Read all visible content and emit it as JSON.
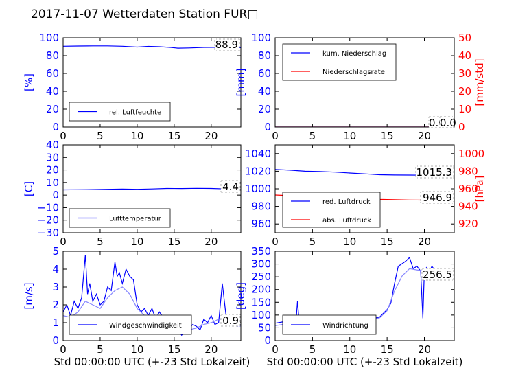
{
  "page": {
    "title": "2017-11-07 Wetterdaten Station FUR□"
  },
  "colors": {
    "left": "#0000ff",
    "right": "#ff0000",
    "light": "#8888ff"
  },
  "chart_data": [
    {
      "type": "line",
      "ylabel": "[%]",
      "xlabel": "",
      "xlim": [
        0,
        24
      ],
      "ylim": [
        0,
        100
      ],
      "xticks": [
        "0",
        "5",
        "10",
        "15",
        "20"
      ],
      "yticks": [
        "0",
        "20",
        "40",
        "60",
        "80",
        "100"
      ],
      "legend": "bottom-left",
      "last_value_label": "88.9",
      "series": [
        {
          "name": "rel. Luftfeuchte",
          "color": "#0000ff",
          "axis": "left",
          "x": [
            0,
            2,
            4,
            6,
            8,
            10,
            11.5,
            13,
            14.5,
            15.5,
            17,
            19,
            21,
            24
          ],
          "y": [
            90.5,
            90.8,
            90.9,
            90.9,
            90.5,
            89.6,
            90.4,
            90.0,
            89.2,
            88.4,
            88.6,
            89.2,
            89.3,
            88.9
          ]
        }
      ]
    },
    {
      "type": "line",
      "ylabel": "[mm]",
      "y2label": "[mm/std]",
      "xlabel": "",
      "xlim": [
        0,
        24
      ],
      "ylim": [
        0,
        100
      ],
      "y2lim": [
        0,
        50
      ],
      "xticks": [
        "0",
        "5",
        "10",
        "15",
        "20"
      ],
      "yticks": [
        "0",
        "20",
        "40",
        "60",
        "80",
        "100"
      ],
      "y2ticks": [
        "0",
        "10",
        "20",
        "30",
        "40",
        "50"
      ],
      "legend": "top-left",
      "last_value_label": "0.00",
      "second_value_label": "0.0",
      "series": [
        {
          "name": "kum. Niederschlag",
          "color": "#0000ff",
          "axis": "left",
          "x": [
            0,
            24
          ],
          "y": [
            0,
            0
          ]
        },
        {
          "name": "Niederschlagsrate",
          "color": "#ff0000",
          "axis": "right",
          "x": [
            0,
            24
          ],
          "y": [
            0,
            0
          ]
        }
      ]
    },
    {
      "type": "line",
      "ylabel": "[C]",
      "xlabel": "",
      "xlim": [
        0,
        24
      ],
      "ylim": [
        -30,
        40
      ],
      "xticks": [
        "0",
        "5",
        "10",
        "15",
        "20"
      ],
      "yticks": [
        "−30",
        "−20",
        "−10",
        "0",
        "10",
        "20",
        "30",
        "40"
      ],
      "legend": "bottom-left",
      "last_value_label": "4.4",
      "series": [
        {
          "name": "Lufttemperatur",
          "color": "#0000ff",
          "axis": "left",
          "x": [
            0,
            2,
            4,
            6,
            8,
            10,
            12,
            14,
            16,
            18,
            20,
            22,
            24
          ],
          "y": [
            4.2,
            4.3,
            4.4,
            4.6,
            4.8,
            4.6,
            4.9,
            5.3,
            5.2,
            5.4,
            5.3,
            4.9,
            4.4
          ]
        }
      ]
    },
    {
      "type": "line",
      "ylabel": "",
      "y2label": "[hPa]",
      "xlabel": "",
      "xlim": [
        0,
        24
      ],
      "ylim": [
        950,
        1050
      ],
      "y2lim": [
        910,
        1010
      ],
      "xticks": [
        "0",
        "5",
        "10",
        "15",
        "20"
      ],
      "yticks": [
        "960",
        "980",
        "1000",
        "1020",
        "1040"
      ],
      "y2ticks": [
        "920",
        "940",
        "960",
        "980",
        "1000"
      ],
      "legend": "bottom-left",
      "last_value_label": "1015.3",
      "second_value_label": "946.9",
      "series": [
        {
          "name": "red. Luftdruck",
          "color": "#0000ff",
          "axis": "left",
          "x": [
            0,
            2,
            4,
            6,
            8,
            10,
            12,
            14,
            16,
            18,
            20,
            22,
            24
          ],
          "y": [
            1022.0,
            1021.2,
            1020.0,
            1019.6,
            1019.0,
            1018.0,
            1017.0,
            1016.0,
            1015.7,
            1015.6,
            1015.5,
            1015.4,
            1015.3
          ]
        },
        {
          "name": "abs. Luftdruck",
          "color": "#ff0000",
          "axis": "right",
          "x": [
            0,
            2,
            4,
            6,
            8,
            10,
            12,
            14,
            16,
            18,
            20,
            22,
            24
          ],
          "y": [
            953.0,
            952.3,
            951.5,
            950.8,
            950.2,
            949.6,
            948.8,
            948.0,
            947.6,
            947.3,
            947.1,
            947.0,
            946.9
          ]
        }
      ]
    },
    {
      "type": "line",
      "ylabel": "[m/s]",
      "xlabel": "Std 00:00:00 UTC (+-23 Std Lokalzeit)",
      "xlim": [
        0,
        24
      ],
      "ylim": [
        0,
        5
      ],
      "xticks": [
        "0",
        "5",
        "10",
        "15",
        "20"
      ],
      "yticks": [
        "0",
        "1",
        "2",
        "3",
        "4",
        "5"
      ],
      "legend": "bottom-left",
      "last_value_label": "0.9",
      "series": [
        {
          "name": "Windgeschwindigkeit",
          "color": "#0000ff",
          "axis": "left",
          "x": [
            0,
            0.5,
            1,
            1.5,
            2,
            2.5,
            3,
            3.3,
            3.6,
            4,
            4.5,
            5,
            5.5,
            6,
            6.5,
            7,
            7.3,
            7.6,
            8,
            8.5,
            9,
            9.5,
            10,
            10.5,
            11,
            11.5,
            12,
            12.5,
            13,
            13.5,
            14,
            14.5,
            15,
            15.5,
            16,
            16.5,
            17,
            17.5,
            18,
            18.5,
            19,
            19.5,
            20,
            20.5,
            21,
            21.5,
            22,
            22.5,
            23,
            23.5,
            24
          ],
          "y": [
            1.6,
            2.0,
            1.4,
            2.2,
            1.8,
            2.4,
            4.8,
            2.6,
            3.2,
            2.2,
            2.6,
            2.0,
            2.2,
            3.0,
            2.8,
            4.4,
            3.6,
            3.8,
            3.2,
            4.0,
            3.6,
            3.4,
            2.0,
            1.6,
            1.8,
            1.4,
            1.8,
            1.2,
            1.6,
            1.3,
            1.2,
            1.0,
            1.0,
            0.6,
            0.3,
            0.5,
            0.7,
            0.9,
            0.8,
            0.6,
            1.2,
            1.0,
            1.4,
            0.9,
            1.0,
            3.2,
            1.4,
            1.0,
            1.2,
            0.8,
            0.9
          ]
        },
        {
          "name": "",
          "color": "#8888ff",
          "axis": "left",
          "x": [
            0,
            1,
            2,
            3,
            4,
            5,
            6,
            7,
            8,
            9,
            10,
            11,
            12,
            13,
            14,
            15,
            16,
            17,
            18,
            19,
            20,
            21,
            22,
            23,
            24
          ],
          "y": [
            1.4,
            1.3,
            1.6,
            2.2,
            2.0,
            1.8,
            2.4,
            2.8,
            3.0,
            2.6,
            1.8,
            1.4,
            1.3,
            1.1,
            1.0,
            0.8,
            0.4,
            0.6,
            0.7,
            0.9,
            1.0,
            1.2,
            1.2,
            0.9,
            0.8
          ]
        }
      ]
    },
    {
      "type": "line",
      "ylabel": "[deg]",
      "xlabel": "Std 00:00:00 UTC (+-23 Std Lokalzeit)",
      "xlim": [
        0,
        24
      ],
      "ylim": [
        0,
        360
      ],
      "xticks": [
        "0",
        "5",
        "10",
        "15",
        "20"
      ],
      "yticks": [
        "0",
        "50",
        "100",
        "150",
        "200",
        "250",
        "300",
        "350"
      ],
      "legend": "bottom-left",
      "last_value_label": "256.5",
      "series": [
        {
          "name": "Windrichtung",
          "color": "#0000ff",
          "axis": "left",
          "x": [
            0,
            1,
            2,
            2.8,
            3.0,
            3.2,
            4,
            5,
            6,
            7,
            8,
            9,
            10,
            11,
            12,
            13,
            14,
            14.5,
            15,
            15.5,
            16,
            16.5,
            17,
            17.5,
            18,
            18.5,
            19,
            19.5,
            19.8,
            20,
            20.3,
            20.6,
            21,
            21.5,
            22,
            22.5,
            23,
            23.5,
            24
          ],
          "y": [
            70,
            75,
            80,
            75,
            160,
            80,
            72,
            70,
            68,
            72,
            78,
            82,
            95,
            100,
            92,
            88,
            95,
            110,
            125,
            150,
            230,
            300,
            310,
            320,
            335,
            290,
            300,
            280,
            90,
            285,
            295,
            270,
            300,
            280,
            270,
            275,
            265,
            260,
            256.5
          ]
        },
        {
          "name": "",
          "color": "#8888ff",
          "axis": "left",
          "x": [
            0,
            1,
            2,
            3,
            4,
            5,
            6,
            7,
            8,
            9,
            10,
            11,
            12,
            13,
            14,
            15,
            16,
            17,
            18,
            19,
            20,
            21,
            22,
            23,
            24
          ],
          "y": [
            60,
            65,
            70,
            68,
            66,
            64,
            66,
            70,
            74,
            78,
            84,
            90,
            86,
            84,
            92,
            120,
            200,
            260,
            290,
            285,
            280,
            275,
            268,
            262,
            258
          ]
        }
      ]
    }
  ]
}
